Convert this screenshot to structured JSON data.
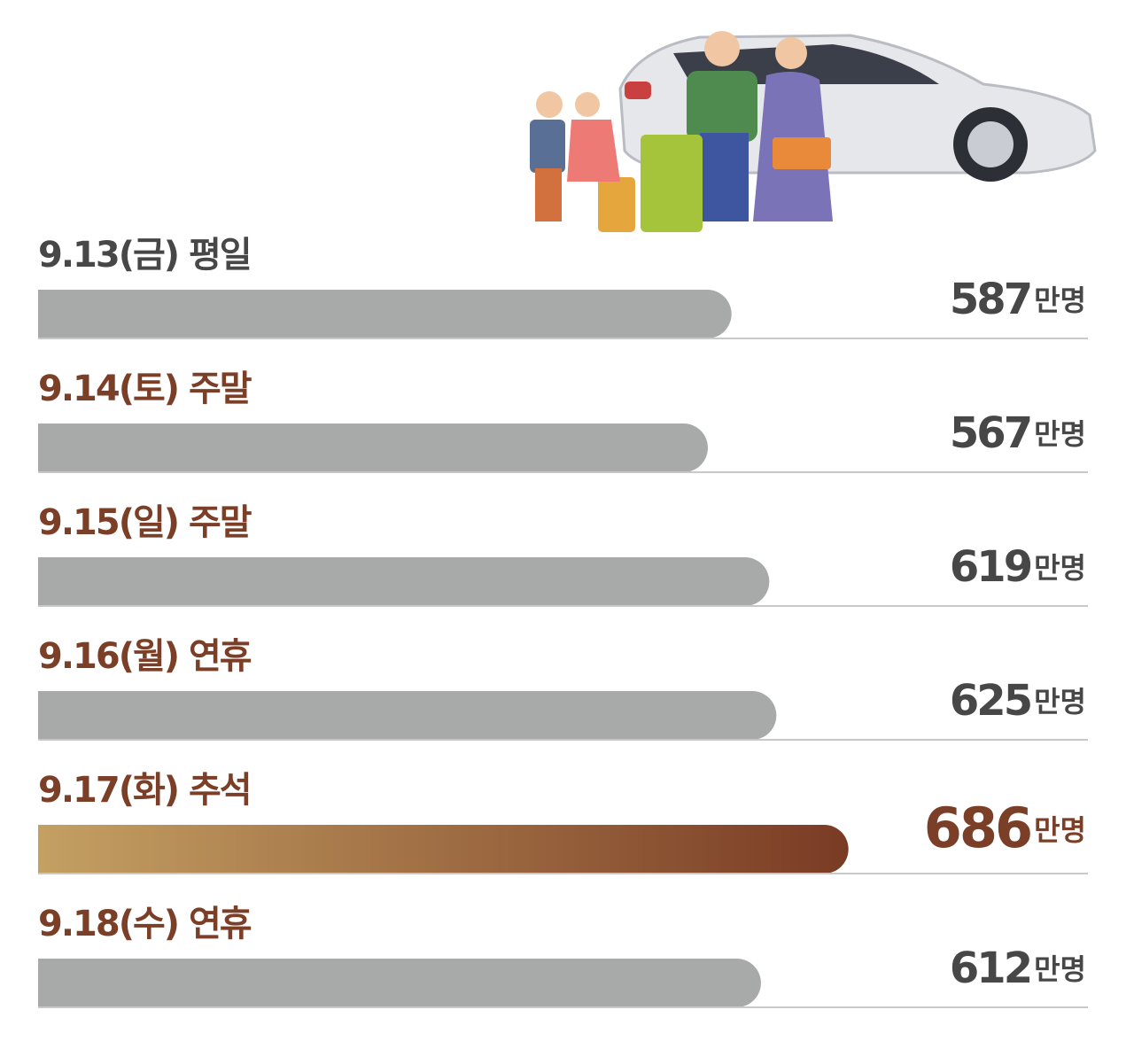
{
  "chart_data": {
    "type": "bar",
    "orientation": "horizontal",
    "categories": [
      "9.13(금) 평일",
      "9.14(토) 주말",
      "9.15(일) 주말",
      "9.16(월) 연휴",
      "9.17(화) 추석",
      "9.18(수) 연휴"
    ],
    "values": [
      587,
      567,
      619,
      625,
      686,
      612
    ],
    "unit": "만명",
    "color": "#a8aaa9",
    "highlight_index": 4,
    "highlight_colors": [
      "#c4a063",
      "#7a3b24"
    ],
    "label_colors": [
      "#474747",
      "#7b3f27"
    ]
  }
}
